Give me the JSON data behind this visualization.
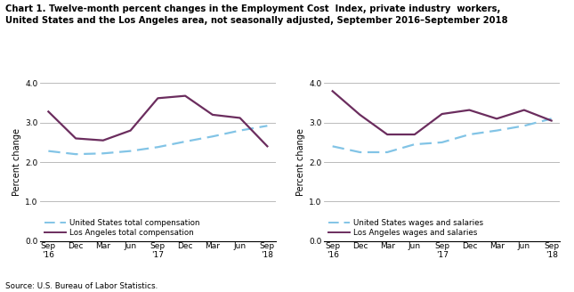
{
  "title_line1": "Chart 1. Twelve-month percent changes in the Employment Cost  Index, private industry  workers,",
  "title_line2": "United States and the Los Angeles area, not seasonally adjusted, September 2016–September 2018",
  "left_chart": {
    "ylabel": "Percent change",
    "us_data": [
      2.28,
      2.2,
      2.22,
      2.28,
      2.38,
      2.52,
      2.65,
      2.8,
      2.92
    ],
    "la_data": [
      3.28,
      2.6,
      2.55,
      2.8,
      3.62,
      3.68,
      3.2,
      3.12,
      2.4
    ],
    "legend_us": "United States total compensation",
    "legend_la": "Los Angeles total compensation"
  },
  "right_chart": {
    "ylabel": "Percent change",
    "us_data": [
      2.4,
      2.25,
      2.25,
      2.45,
      2.5,
      2.7,
      2.8,
      2.92,
      3.1
    ],
    "la_data": [
      3.8,
      3.2,
      2.7,
      2.7,
      3.22,
      3.32,
      3.1,
      3.32,
      3.05
    ],
    "legend_us": "United States wages and salaries",
    "legend_la": "Los Angeles wages and salaries"
  },
  "us_color": "#82C4E6",
  "la_color": "#6B2D5E",
  "ylim": [
    0.0,
    4.0
  ],
  "yticks": [
    0.0,
    1.0,
    2.0,
    3.0,
    4.0
  ],
  "x_labels": [
    "Sep\n'16",
    "Dec",
    "Mar",
    "Jun",
    "Sep\n'17",
    "Dec",
    "Mar",
    "Jun",
    "Sep\n'18"
  ],
  "source": "Source: U.S. Bureau of Labor Statistics.",
  "grid_color": "#b0b0b0",
  "background_color": "#ffffff"
}
